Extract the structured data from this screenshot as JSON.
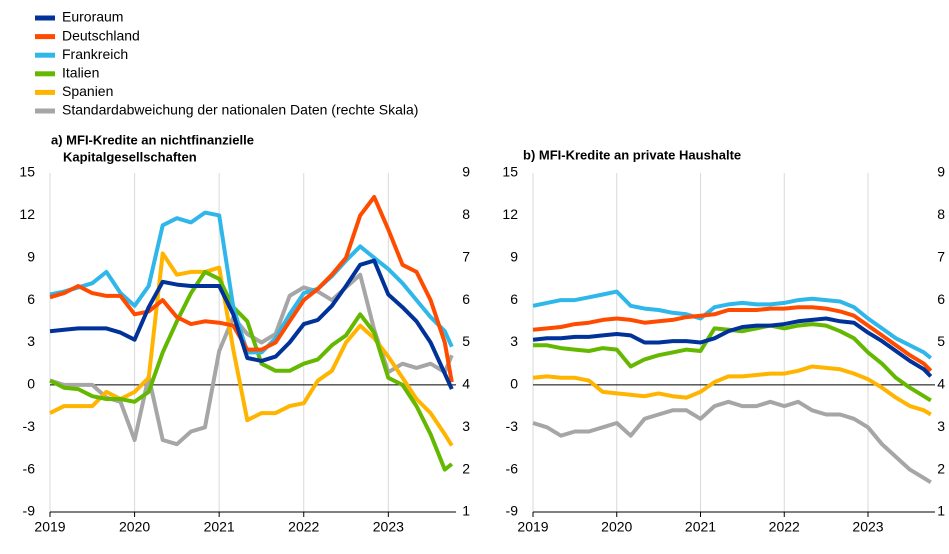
{
  "chart_data": [
    {
      "type": "line",
      "title": [
        "a) MFI-Kredite an nichtfinanzielle",
        "Kapitalgesellschaften"
      ],
      "x": [
        2019,
        2019.167,
        2019.333,
        2019.5,
        2019.667,
        2019.833,
        2020,
        2020.167,
        2020.333,
        2020.5,
        2020.667,
        2020.833,
        2021,
        2021.167,
        2021.333,
        2021.5,
        2021.667,
        2021.833,
        2022,
        2022.167,
        2022.333,
        2022.5,
        2022.667,
        2022.833,
        2023,
        2023.167,
        2023.333,
        2023.5,
        2023.667,
        2023.75
      ],
      "xlim": [
        2019,
        2023.8
      ],
      "xticks": [
        2019,
        2020,
        2021,
        2022,
        2023
      ],
      "ylim": [
        -9,
        15
      ],
      "yticks": [
        -9,
        -6,
        -3,
        0,
        3,
        6,
        9,
        12,
        15
      ],
      "y2lim": [
        1,
        9
      ],
      "y2ticks": [
        1,
        2,
        3,
        4,
        5,
        6,
        7,
        8,
        9
      ],
      "series": [
        {
          "name": "Euroraum",
          "color": "#003299",
          "values": [
            3.8,
            3.9,
            4.0,
            4.0,
            4.0,
            3.7,
            3.2,
            5.5,
            7.3,
            7.1,
            7.0,
            7.0,
            7.0,
            5.0,
            1.9,
            1.7,
            2.0,
            3.0,
            4.3,
            4.6,
            5.6,
            7.0,
            8.5,
            8.8,
            6.4,
            5.5,
            4.5,
            3.0,
            0.8,
            -0.3
          ]
        },
        {
          "name": "Deutschland",
          "color": "#ff4b00",
          "values": [
            6.2,
            6.5,
            7.0,
            6.5,
            6.3,
            6.3,
            5.0,
            5.2,
            6.0,
            4.8,
            4.3,
            4.5,
            4.4,
            4.2,
            2.5,
            2.5,
            3.0,
            4.5,
            6.0,
            6.8,
            7.8,
            9.0,
            12.0,
            13.3,
            11.0,
            8.5,
            8.0,
            6.0,
            3.0,
            0.2
          ]
        },
        {
          "name": "Frankreich",
          "color": "#30b7ea",
          "values": [
            6.4,
            6.6,
            6.9,
            7.2,
            8.0,
            6.5,
            5.6,
            7.0,
            11.3,
            11.8,
            11.5,
            12.2,
            12.0,
            5.5,
            2.3,
            2.3,
            3.3,
            5.0,
            6.5,
            6.8,
            7.7,
            8.8,
            9.8,
            9.0,
            8.2,
            7.2,
            6.0,
            4.8,
            3.8,
            2.7
          ]
        },
        {
          "name": "Italien",
          "color": "#65b800",
          "values": [
            0.3,
            -0.2,
            -0.3,
            -0.8,
            -1.0,
            -1.0,
            -1.2,
            -0.5,
            2.3,
            4.5,
            6.5,
            8.0,
            7.5,
            5.5,
            4.5,
            1.5,
            1.0,
            1.0,
            1.5,
            1.8,
            2.8,
            3.5,
            5.0,
            3.7,
            0.5,
            0.0,
            -1.5,
            -3.5,
            -6.0,
            -5.6
          ]
        },
        {
          "name": "Spanien",
          "color": "#ffb400",
          "values": [
            -2.0,
            -1.5,
            -1.5,
            -1.5,
            -0.5,
            -1.0,
            -0.5,
            0.5,
            9.3,
            7.8,
            8.0,
            8.0,
            8.3,
            2.5,
            -2.5,
            -2.0,
            -2.0,
            -1.5,
            -1.3,
            0.3,
            1.0,
            3.0,
            4.2,
            3.3,
            2.0,
            0.5,
            -1.0,
            -2.0,
            -3.5,
            -4.3
          ]
        },
        {
          "name": "Standardabweichung der nationalen Daten (rechte Skala)",
          "color": "#a6a6a6",
          "axis": "y2",
          "values": [
            4.1,
            4.0,
            4.0,
            4.0,
            3.7,
            3.6,
            2.7,
            4.2,
            2.7,
            2.6,
            2.9,
            3.0,
            4.8,
            5.6,
            5.2,
            5.0,
            5.2,
            6.1,
            6.3,
            6.2,
            6.0,
            6.3,
            6.6,
            5.3,
            4.3,
            4.5,
            4.4,
            4.5,
            4.3,
            4.7
          ]
        }
      ]
    },
    {
      "type": "line",
      "title": [
        "b) MFI-Kredite an private Haushalte"
      ],
      "x": [
        2019,
        2019.167,
        2019.333,
        2019.5,
        2019.667,
        2019.833,
        2020,
        2020.167,
        2020.333,
        2020.5,
        2020.667,
        2020.833,
        2021,
        2021.167,
        2021.333,
        2021.5,
        2021.667,
        2021.833,
        2022,
        2022.167,
        2022.333,
        2022.5,
        2022.667,
        2022.833,
        2023,
        2023.167,
        2023.333,
        2023.5,
        2023.667,
        2023.75
      ],
      "xlim": [
        2019,
        2023.8
      ],
      "xticks": [
        2019,
        2020,
        2021,
        2022,
        2023
      ],
      "ylim": [
        -9,
        15
      ],
      "yticks": [
        -9,
        -6,
        -3,
        0,
        3,
        6,
        9,
        12,
        15
      ],
      "y2lim": [
        1,
        9
      ],
      "y2ticks": [
        1,
        2,
        3,
        4,
        5,
        6,
        7,
        8,
        9
      ],
      "series": [
        {
          "color": "#003299",
          "values": [
            3.2,
            3.3,
            3.3,
            3.4,
            3.4,
            3.5,
            3.6,
            3.5,
            3.0,
            3.0,
            3.1,
            3.1,
            3.0,
            3.3,
            3.8,
            4.1,
            4.2,
            4.2,
            4.3,
            4.5,
            4.6,
            4.7,
            4.5,
            4.4,
            3.7,
            3.1,
            2.4,
            1.7,
            1.1,
            0.6
          ]
        },
        {
          "color": "#ff4b00",
          "values": [
            3.9,
            4.0,
            4.1,
            4.3,
            4.4,
            4.6,
            4.7,
            4.6,
            4.4,
            4.5,
            4.6,
            4.8,
            4.9,
            5.0,
            5.3,
            5.3,
            5.3,
            5.4,
            5.4,
            5.5,
            5.5,
            5.4,
            5.2,
            4.9,
            4.2,
            3.5,
            2.8,
            2.1,
            1.5,
            1.0
          ]
        },
        {
          "color": "#30b7ea",
          "values": [
            5.6,
            5.8,
            6.0,
            6.0,
            6.2,
            6.4,
            6.6,
            5.6,
            5.4,
            5.3,
            5.1,
            5.0,
            4.7,
            5.5,
            5.7,
            5.8,
            5.7,
            5.7,
            5.8,
            6.0,
            6.1,
            6.0,
            5.9,
            5.5,
            4.7,
            4.0,
            3.3,
            2.8,
            2.3,
            1.9
          ]
        },
        {
          "color": "#65b800",
          "values": [
            2.8,
            2.8,
            2.6,
            2.5,
            2.4,
            2.6,
            2.5,
            1.3,
            1.8,
            2.1,
            2.3,
            2.5,
            2.4,
            4.0,
            3.9,
            3.8,
            4.0,
            4.2,
            4.0,
            4.2,
            4.3,
            4.2,
            3.8,
            3.3,
            2.3,
            1.5,
            0.5,
            -0.2,
            -0.8,
            -1.1
          ]
        },
        {
          "color": "#ffb400",
          "values": [
            0.5,
            0.6,
            0.5,
            0.5,
            0.3,
            -0.5,
            -0.6,
            -0.7,
            -0.8,
            -0.6,
            -0.8,
            -0.9,
            -0.5,
            0.2,
            0.6,
            0.6,
            0.7,
            0.8,
            0.8,
            1.0,
            1.3,
            1.2,
            1.1,
            0.8,
            0.4,
            -0.2,
            -0.9,
            -1.5,
            -1.8,
            -2.1
          ]
        },
        {
          "color": "#a6a6a6",
          "axis": "y2",
          "values": [
            3.1,
            3.0,
            2.8,
            2.9,
            2.9,
            3.0,
            3.1,
            2.8,
            3.2,
            3.3,
            3.4,
            3.4,
            3.2,
            3.5,
            3.6,
            3.5,
            3.5,
            3.6,
            3.5,
            3.6,
            3.4,
            3.3,
            3.3,
            3.2,
            3.0,
            2.6,
            2.3,
            2.0,
            1.8,
            1.7
          ]
        }
      ]
    }
  ]
}
